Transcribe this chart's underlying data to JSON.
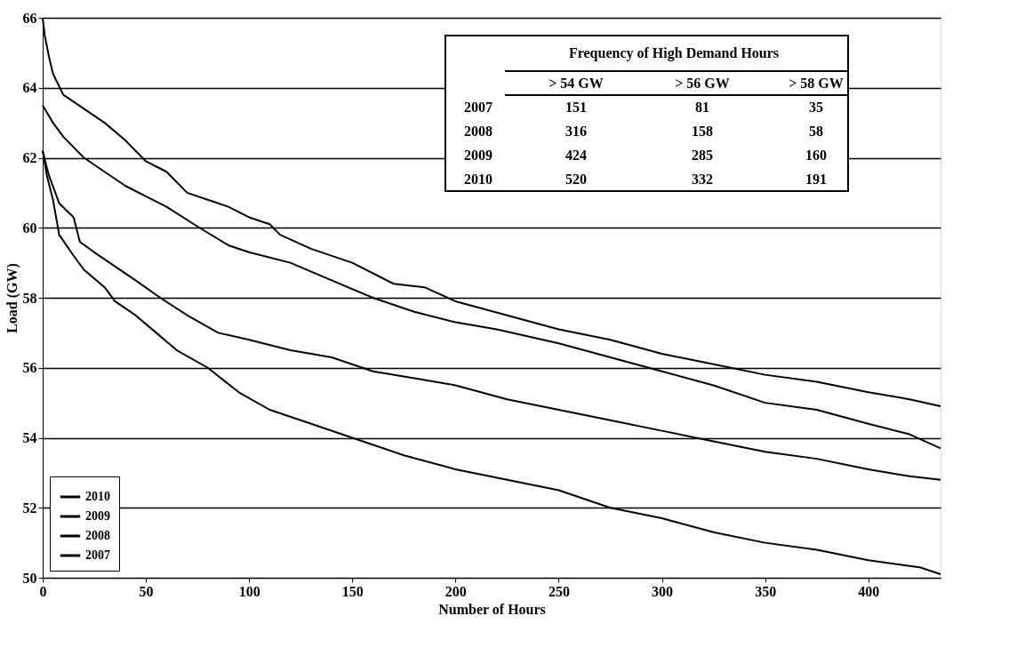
{
  "chart_data": {
    "type": "line",
    "xlabel": "Number of Hours",
    "ylabel": "Load (GW)",
    "xlim": [
      0,
      435
    ],
    "xticks": [
      0,
      50,
      100,
      150,
      200,
      250,
      300,
      350,
      400
    ],
    "ylim": [
      50,
      66
    ],
    "yticks": [
      50,
      52,
      54,
      56,
      58,
      60,
      62,
      64,
      66
    ],
    "grid": "y",
    "legend": "bottom left",
    "marker": "none",
    "line_style": "solid",
    "series": [
      {
        "name": "2010",
        "color": "#000000",
        "x": [
          0,
          1,
          3,
          5,
          10,
          20,
          30,
          40,
          50,
          60,
          70,
          80,
          90,
          100,
          110,
          115,
          130,
          150,
          170,
          185,
          200,
          225,
          250,
          275,
          300,
          325,
          350,
          375,
          400,
          420,
          435
        ],
        "values": [
          66,
          65.5,
          64.9,
          64.4,
          63.8,
          63.4,
          63.0,
          62.5,
          61.9,
          61.6,
          61.0,
          60.8,
          60.6,
          60.3,
          60.1,
          59.8,
          59.4,
          59.0,
          58.4,
          58.3,
          57.9,
          57.5,
          57.1,
          56.8,
          56.4,
          56.1,
          55.8,
          55.6,
          55.3,
          55.1,
          54.9
        ]
      },
      {
        "name": "2009",
        "color": "#000000",
        "x": [
          0,
          5,
          10,
          20,
          30,
          40,
          50,
          60,
          76,
          90,
          100,
          120,
          140,
          160,
          180,
          200,
          220,
          250,
          275,
          300,
          325,
          350,
          375,
          400,
          420,
          435
        ],
        "values": [
          63.5,
          63.0,
          62.6,
          62.0,
          61.6,
          61.2,
          60.9,
          60.6,
          60.0,
          59.5,
          59.3,
          59.0,
          58.5,
          58.0,
          57.6,
          57.3,
          57.1,
          56.7,
          56.3,
          55.9,
          55.5,
          55.0,
          54.8,
          54.4,
          54.1,
          53.7
        ]
      },
      {
        "name": "2008",
        "color": "#000000",
        "x": [
          0,
          3,
          8,
          15,
          18,
          25,
          35,
          45,
          57,
          70,
          85,
          100,
          120,
          140,
          160,
          180,
          200,
          225,
          250,
          275,
          300,
          325,
          350,
          375,
          400,
          420,
          435
        ],
        "values": [
          62.2,
          61.5,
          60.7,
          60.3,
          59.6,
          59.3,
          58.9,
          58.5,
          58.0,
          57.5,
          57.0,
          56.8,
          56.5,
          56.3,
          55.9,
          55.7,
          55.5,
          55.1,
          54.8,
          54.5,
          54.2,
          53.9,
          53.6,
          53.4,
          53.1,
          52.9,
          52.8
        ]
      },
      {
        "name": "2007",
        "color": "#000000",
        "x": [
          0,
          2,
          5,
          8,
          15,
          20,
          30,
          35,
          45,
          55,
          65,
          80,
          95,
          110,
          125,
          150,
          175,
          200,
          225,
          250,
          275,
          300,
          325,
          350,
          375,
          400,
          425,
          435
        ],
        "values": [
          62.2,
          61.5,
          60.8,
          59.8,
          59.2,
          58.8,
          58.3,
          57.9,
          57.5,
          57.0,
          56.5,
          56.0,
          55.3,
          54.8,
          54.5,
          54.0,
          53.5,
          53.1,
          52.8,
          52.5,
          52.0,
          51.7,
          51.3,
          51.0,
          50.8,
          50.5,
          50.3,
          50.1
        ]
      }
    ],
    "annotations": [
      "Frequency of High Demand Hours",
      "> 54 GW",
      "> 56 GW",
      "> 58 GW",
      "2007",
      "151",
      "81",
      "35",
      "2008",
      "316",
      "158",
      "58",
      "2009",
      "424",
      "285",
      "160",
      "2010",
      "520",
      "332",
      "191"
    ]
  }
}
